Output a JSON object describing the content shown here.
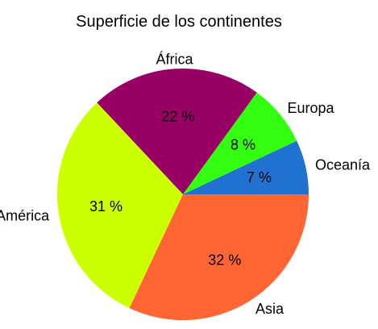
{
  "chart_data": {
    "type": "pie",
    "title": "Superficie de los continentes",
    "slices": [
      {
        "label": "Oceanía",
        "value": 7,
        "display": "7 %",
        "color": "#2171d1"
      },
      {
        "label": "Europa",
        "value": 8,
        "display": "8 %",
        "color": "#33ff11"
      },
      {
        "label": "África",
        "value": 22,
        "display": "22 %",
        "color": "#990066"
      },
      {
        "label": "América",
        "value": 31,
        "display": "31 %",
        "color": "#ccff00"
      },
      {
        "label": "Asia",
        "value": 32,
        "display": "32 %",
        "color": "#ff6633"
      }
    ],
    "start": "3 o'clock",
    "direction": "counter-clockwise",
    "legend": "none (labels placed beside slices)"
  }
}
